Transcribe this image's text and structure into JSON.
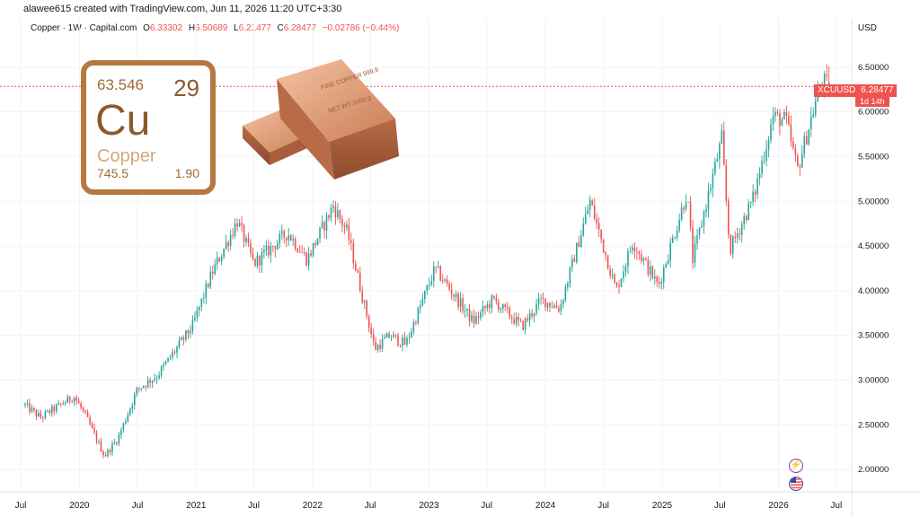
{
  "header": {
    "credit": "alawee615 created with TradingView.com, Jun 11, 2026 11:20 UTC+3:30"
  },
  "legend": {
    "title": "Copper · 1W · Capital.com",
    "open_label": "O",
    "open": "6.33302",
    "high_label": "H",
    "high": "6.50689",
    "low_label": "L",
    "low": "6.21477",
    "close_label": "C",
    "close": "6.28477",
    "change": "−0.02786 (−0.44%)"
  },
  "currency": "USD",
  "price_label": {
    "symbol": "XCUUSD",
    "value": "6.28477",
    "countdown": "1d 14h"
  },
  "periodic_tile": {
    "atomic_mass": "63.546",
    "atomic_number": "29",
    "symbol": "Cu",
    "name": "Copper",
    "melting_point": "745.5",
    "electronegativity": "1.90"
  },
  "bars": {
    "top_stamp": "FINE COPPER 999.9",
    "bottom_stamp": "NET WT 1000 g"
  },
  "colors": {
    "up": "#26a69a",
    "down": "#ef5350",
    "grid": "#f0f3fa",
    "copper": "#c8825a"
  },
  "chart_data": {
    "type": "candlestick",
    "symbol": "XCUUSD",
    "interval": "1W",
    "ylim": [
      1.75,
      6.85
    ],
    "xlim": [
      "2019-07-15",
      "2026-08-10"
    ],
    "y_ticks": [
      "2.00000",
      "2.50000",
      "3.00000",
      "3.50000",
      "4.00000",
      "4.50000",
      "5.00000",
      "5.50000",
      "6.00000",
      "6.50000"
    ],
    "x_ticks": [
      {
        "label": "Jul",
        "date": "2019-07-01"
      },
      {
        "label": "2020",
        "date": "2020-01-01"
      },
      {
        "label": "Jul",
        "date": "2020-07-01"
      },
      {
        "label": "2021",
        "date": "2021-01-01"
      },
      {
        "label": "Jul",
        "date": "2021-07-01"
      },
      {
        "label": "2022",
        "date": "2022-01-01"
      },
      {
        "label": "Jul",
        "date": "2022-07-01"
      },
      {
        "label": "2023",
        "date": "2023-01-01"
      },
      {
        "label": "Jul",
        "date": "2023-07-01"
      },
      {
        "label": "2024",
        "date": "2024-01-01"
      },
      {
        "label": "Jul",
        "date": "2024-07-01"
      },
      {
        "label": "2025",
        "date": "2025-01-01"
      },
      {
        "label": "Jul",
        "date": "2025-07-01"
      },
      {
        "label": "2026",
        "date": "2026-01-01"
      },
      {
        "label": "Jul",
        "date": "2026-07-01"
      }
    ],
    "key_closes": [
      {
        "date": "2019-07-15",
        "close": 2.72
      },
      {
        "date": "2019-09-01",
        "close": 2.58
      },
      {
        "date": "2019-12-15",
        "close": 2.82
      },
      {
        "date": "2020-01-20",
        "close": 2.6
      },
      {
        "date": "2020-03-20",
        "close": 2.15
      },
      {
        "date": "2020-05-01",
        "close": 2.35
      },
      {
        "date": "2020-07-01",
        "close": 2.9
      },
      {
        "date": "2020-09-01",
        "close": 3.05
      },
      {
        "date": "2020-12-20",
        "close": 3.6
      },
      {
        "date": "2021-02-20",
        "close": 4.2
      },
      {
        "date": "2021-05-10",
        "close": 4.78
      },
      {
        "date": "2021-07-01",
        "close": 4.3
      },
      {
        "date": "2021-10-15",
        "close": 4.65
      },
      {
        "date": "2021-12-15",
        "close": 4.35
      },
      {
        "date": "2022-03-07",
        "close": 4.95
      },
      {
        "date": "2022-04-20",
        "close": 4.65
      },
      {
        "date": "2022-07-15",
        "close": 3.35
      },
      {
        "date": "2022-09-01",
        "close": 3.5
      },
      {
        "date": "2022-10-20",
        "close": 3.4
      },
      {
        "date": "2023-01-20",
        "close": 4.25
      },
      {
        "date": "2023-03-01",
        "close": 4.05
      },
      {
        "date": "2023-05-20",
        "close": 3.65
      },
      {
        "date": "2023-07-20",
        "close": 3.9
      },
      {
        "date": "2023-10-20",
        "close": 3.6
      },
      {
        "date": "2023-12-20",
        "close": 3.9
      },
      {
        "date": "2024-02-15",
        "close": 3.8
      },
      {
        "date": "2024-05-20",
        "close": 5.0
      },
      {
        "date": "2024-08-10",
        "close": 4.0
      },
      {
        "date": "2024-10-01",
        "close": 4.55
      },
      {
        "date": "2024-12-20",
        "close": 4.05
      },
      {
        "date": "2025-03-20",
        "close": 5.1
      },
      {
        "date": "2025-04-07",
        "close": 4.35
      },
      {
        "date": "2025-07-07",
        "close": 5.7
      },
      {
        "date": "2025-08-01",
        "close": 4.45
      },
      {
        "date": "2025-10-15",
        "close": 5.05
      },
      {
        "date": "2025-12-15",
        "close": 5.95
      },
      {
        "date": "2026-01-25",
        "close": 5.9
      },
      {
        "date": "2026-03-01",
        "close": 5.35
      },
      {
        "date": "2026-05-15",
        "close": 6.35
      },
      {
        "date": "2026-06-08",
        "close": 6.28477
      }
    ],
    "last_candle": {
      "open": 6.33302,
      "high": 6.50689,
      "low": 6.21477,
      "close": 6.28477
    },
    "price_line": 6.28477
  }
}
